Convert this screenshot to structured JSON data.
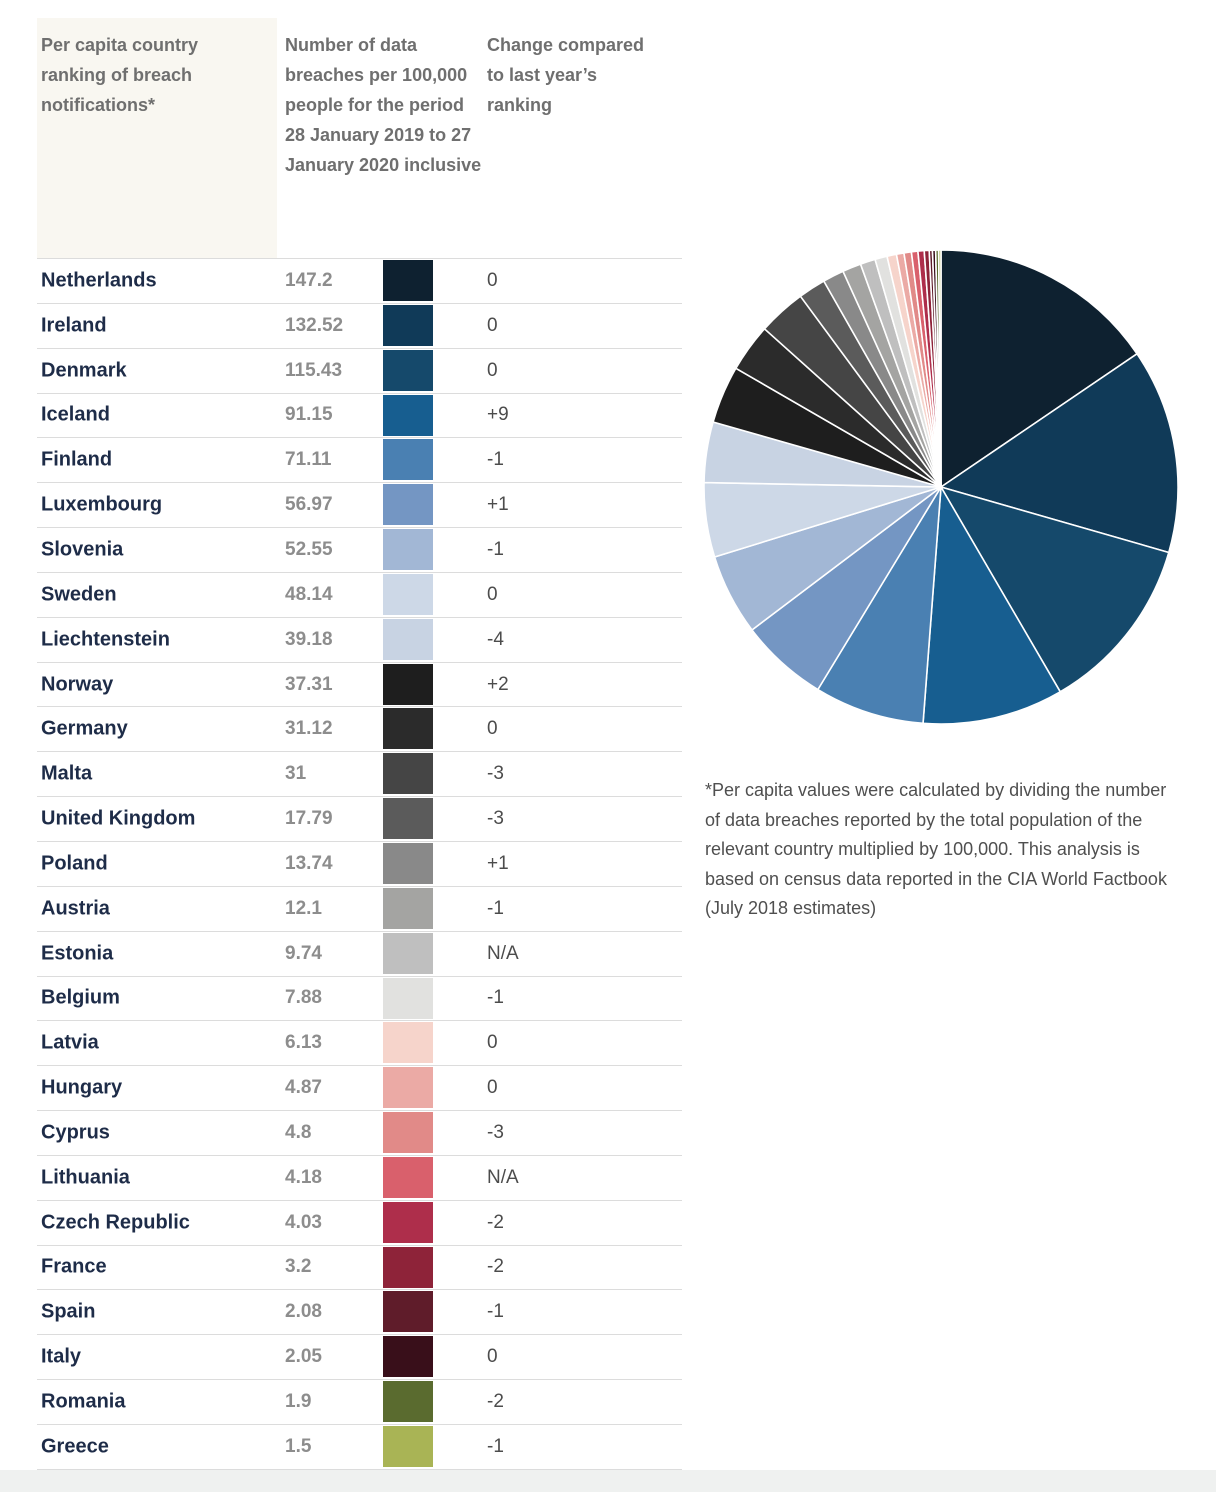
{
  "table": {
    "headers": [
      "Per capita country ranking of breach notifications*",
      "Number of data breaches per 100,000 people for the period 28 January 2019 to 27 January 2020 inclusive",
      "Change compared to last year’s ranking"
    ],
    "rows": [
      {
        "country": "Netherlands",
        "value": "147.2",
        "change": "0",
        "color": "#0e2130"
      },
      {
        "country": "Ireland",
        "value": "132.52",
        "change": "0",
        "color": "#103a58"
      },
      {
        "country": "Denmark",
        "value": "115.43",
        "change": "0",
        "color": "#15496b"
      },
      {
        "country": "Iceland",
        "value": "91.15",
        "change": "+9",
        "color": "#175e90"
      },
      {
        "country": "Finland",
        "value": "71.11",
        "change": "-1",
        "color": "#4a80b2"
      },
      {
        "country": "Luxembourg",
        "value": "56.97",
        "change": "+1",
        "color": "#7496c3"
      },
      {
        "country": "Slovenia",
        "value": "52.55",
        "change": "-1",
        "color": "#a2b7d5"
      },
      {
        "country": "Sweden",
        "value": "48.14",
        "change": "0",
        "color": "#cdd8e7"
      },
      {
        "country": "Liechtenstein",
        "value": "39.18",
        "change": "-4",
        "color": "#c8d3e3"
      },
      {
        "country": "Norway",
        "value": "37.31",
        "change": "+2",
        "color": "#1e1e1e"
      },
      {
        "country": "Germany",
        "value": "31.12",
        "change": "0",
        "color": "#2b2b2b"
      },
      {
        "country": "Malta",
        "value": "31",
        "change": "-3",
        "color": "#454545"
      },
      {
        "country": "United Kingdom",
        "value": "17.79",
        "change": "-3",
        "color": "#5b5b5b"
      },
      {
        "country": "Poland",
        "value": "13.74",
        "change": "+1",
        "color": "#898989"
      },
      {
        "country": "Austria",
        "value": "12.1",
        "change": "-1",
        "color": "#a4a4a2"
      },
      {
        "country": "Estonia",
        "value": "9.74",
        "change": "N/A",
        "color": "#bfbfbf"
      },
      {
        "country": "Belgium",
        "value": "7.88",
        "change": "-1",
        "color": "#e1e1df"
      },
      {
        "country": "Latvia",
        "value": "6.13",
        "change": "0",
        "color": "#f6d4cb"
      },
      {
        "country": "Hungary",
        "value": "4.87",
        "change": "0",
        "color": "#ebaaa5"
      },
      {
        "country": "Cyprus",
        "value": "4.8",
        "change": "-3",
        "color": "#e18a88"
      },
      {
        "country": "Lithuania",
        "value": "4.18",
        "change": "N/A",
        "color": "#d9606c"
      },
      {
        "country": "Czech Republic",
        "value": "4.03",
        "change": "-2",
        "color": "#ae2e4b"
      },
      {
        "country": "France",
        "value": "3.2",
        "change": "-2",
        "color": "#8e2339"
      },
      {
        "country": "Spain",
        "value": "2.08",
        "change": "-1",
        "color": "#5f1c2a"
      },
      {
        "country": "Italy",
        "value": "2.05",
        "change": "0",
        "color": "#390f1a"
      },
      {
        "country": "Romania",
        "value": "1.9",
        "change": "-2",
        "color": "#5a6b2f"
      },
      {
        "country": "Greece",
        "value": "1.5",
        "change": "-1",
        "color": "#a9b455"
      }
    ]
  },
  "chart_data": {
    "type": "pie",
    "title": "",
    "legend": "none",
    "start": "top",
    "direction": "clockwise",
    "categories": [
      "Netherlands",
      "Ireland",
      "Denmark",
      "Iceland",
      "Finland",
      "Luxembourg",
      "Slovenia",
      "Sweden",
      "Liechtenstein",
      "Norway",
      "Germany",
      "Malta",
      "United Kingdom",
      "Poland",
      "Austria",
      "Estonia",
      "Belgium",
      "Latvia",
      "Hungary",
      "Cyprus",
      "Lithuania",
      "Czech Republic",
      "France",
      "Spain",
      "Italy",
      "Romania",
      "Greece"
    ],
    "values": [
      147.2,
      132.52,
      115.43,
      91.15,
      71.11,
      56.97,
      52.55,
      48.14,
      39.18,
      37.31,
      31.12,
      31,
      17.79,
      13.74,
      12.1,
      9.74,
      7.88,
      6.13,
      4.87,
      4.8,
      4.18,
      4.03,
      3.2,
      2.08,
      2.05,
      1.9,
      1.5
    ],
    "colors": [
      "#0e2130",
      "#103a58",
      "#15496b",
      "#175e90",
      "#4a80b2",
      "#7496c3",
      "#a2b7d5",
      "#cdd8e7",
      "#c8d3e3",
      "#1e1e1e",
      "#2b2b2b",
      "#454545",
      "#5b5b5b",
      "#898989",
      "#a4a4a2",
      "#bfbfbf",
      "#e1e1df",
      "#f6d4cb",
      "#ebaaa5",
      "#e18a88",
      "#d9606c",
      "#ae2e4b",
      "#8e2339",
      "#5f1c2a",
      "#390f1a",
      "#5a6b2f",
      "#a9b455"
    ]
  },
  "footnote": "*Per capita values were calculated by dividing the number of data breaches reported by the total population of the relevant country multiplied by 100,000. This analysis is based on census data reported in the CIA World Factbook (July 2018 estimates)"
}
